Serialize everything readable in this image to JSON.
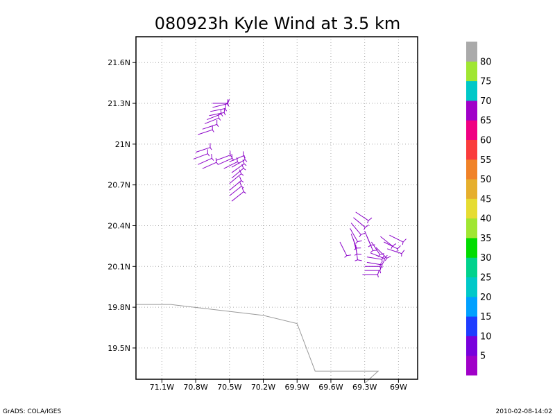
{
  "chart_data": {
    "type": "scatter",
    "title": "080923h Kyle Wind at 3.5 km",
    "x_ticks": [
      "71.1W",
      "70.8W",
      "70.5W",
      "70.2W",
      "69.9W",
      "69.6W",
      "69.3W",
      "69W"
    ],
    "y_ticks": [
      "21.6N",
      "21.3N",
      "21N",
      "20.7N",
      "20.4N",
      "20.1N",
      "19.8N",
      "19.5N"
    ],
    "x_tick_values": [
      -71.1,
      -70.8,
      -70.5,
      -70.2,
      -69.9,
      -69.6,
      -69.3,
      -69.0
    ],
    "y_tick_values": [
      21.6,
      21.3,
      21.0,
      20.7,
      20.4,
      20.1,
      19.8,
      19.5
    ],
    "xlim": [
      -71.33,
      -68.83
    ],
    "ylim": [
      19.27,
      21.79
    ],
    "grid": true,
    "colorbar": {
      "labels": [
        "5",
        "10",
        "15",
        "20",
        "25",
        "30",
        "35",
        "40",
        "45",
        "50",
        "55",
        "60",
        "65",
        "70",
        "75",
        "80"
      ],
      "colors": [
        "#a000c8",
        "#7800dc",
        "#1e3cff",
        "#00a0ff",
        "#00c8c8",
        "#00d28c",
        "#00dc00",
        "#a0e632",
        "#e6dc32",
        "#e6af2d",
        "#f08228",
        "#fa3c3c",
        "#f00082",
        "#a000c8",
        "#00c8c8",
        "#a0e632",
        "#aaaaaa"
      ]
    },
    "coastline": [
      [
        -71.33,
        19.82
      ],
      [
        -71.02,
        19.82
      ],
      [
        -70.2,
        19.74
      ],
      [
        -69.9,
        19.68
      ],
      [
        -69.74,
        19.33
      ],
      [
        -69.18,
        19.33
      ],
      [
        -69.3,
        19.24
      ]
    ],
    "barb_color": "#8a00c8",
    "coast_color": "#999999",
    "wind_barbs": [
      {
        "lon": -70.65,
        "lat": 21.3,
        "u": -4,
        "v": 0
      },
      {
        "lon": -70.65,
        "lat": 21.27,
        "u": -4,
        "v": -1
      },
      {
        "lon": -70.67,
        "lat": 21.24,
        "u": -5,
        "v": -1
      },
      {
        "lon": -70.68,
        "lat": 21.21,
        "u": -5,
        "v": -1
      },
      {
        "lon": -70.7,
        "lat": 21.18,
        "u": -5,
        "v": -2
      },
      {
        "lon": -70.72,
        "lat": 21.15,
        "u": -5,
        "v": -2
      },
      {
        "lon": -70.74,
        "lat": 21.11,
        "u": -6,
        "v": -2
      },
      {
        "lon": -70.78,
        "lat": 21.07,
        "u": -6,
        "v": -2
      },
      {
        "lon": -70.8,
        "lat": 20.94,
        "u": -6,
        "v": -2
      },
      {
        "lon": -70.82,
        "lat": 20.89,
        "u": -8,
        "v": -3
      },
      {
        "lon": -70.78,
        "lat": 20.85,
        "u": -9,
        "v": -4
      },
      {
        "lon": -70.74,
        "lat": 20.82,
        "u": -9,
        "v": -4
      },
      {
        "lon": -70.62,
        "lat": 20.88,
        "u": -8,
        "v": -3
      },
      {
        "lon": -70.6,
        "lat": 20.85,
        "u": -9,
        "v": -4
      },
      {
        "lon": -70.55,
        "lat": 20.82,
        "u": -8,
        "v": -4
      },
      {
        "lon": -70.5,
        "lat": 20.87,
        "u": -7,
        "v": -3
      },
      {
        "lon": -70.48,
        "lat": 20.83,
        "u": -7,
        "v": -4
      },
      {
        "lon": -70.48,
        "lat": 20.79,
        "u": -7,
        "v": -5
      },
      {
        "lon": -70.48,
        "lat": 20.75,
        "u": -6,
        "v": -5
      },
      {
        "lon": -70.5,
        "lat": 20.71,
        "u": -6,
        "v": -5
      },
      {
        "lon": -70.5,
        "lat": 20.66,
        "u": -6,
        "v": -5
      },
      {
        "lon": -70.5,
        "lat": 20.62,
        "u": -5,
        "v": -4
      },
      {
        "lon": -70.48,
        "lat": 20.58,
        "u": -5,
        "v": -4
      },
      {
        "lon": -69.38,
        "lat": 20.5,
        "u": -6,
        "v": 4
      },
      {
        "lon": -69.4,
        "lat": 20.46,
        "u": -6,
        "v": 5
      },
      {
        "lon": -69.42,
        "lat": 20.42,
        "u": -5,
        "v": 6
      },
      {
        "lon": -69.43,
        "lat": 20.38,
        "u": -4,
        "v": 7
      },
      {
        "lon": -69.42,
        "lat": 20.34,
        "u": -3,
        "v": 8
      },
      {
        "lon": -69.4,
        "lat": 20.3,
        "u": -2,
        "v": 8
      },
      {
        "lon": -69.38,
        "lat": 20.26,
        "u": -1,
        "v": 8
      },
      {
        "lon": -69.3,
        "lat": 20.36,
        "u": -3,
        "v": 7
      },
      {
        "lon": -69.28,
        "lat": 20.32,
        "u": -3,
        "v": 7
      },
      {
        "lon": -69.24,
        "lat": 20.28,
        "u": -4,
        "v": 6
      },
      {
        "lon": -69.2,
        "lat": 20.24,
        "u": -5,
        "v": 5
      },
      {
        "lon": -69.16,
        "lat": 20.32,
        "u": -5,
        "v": 4
      },
      {
        "lon": -69.13,
        "lat": 20.28,
        "u": -6,
        "v": 3
      },
      {
        "lon": -69.1,
        "lat": 20.23,
        "u": -6,
        "v": 2
      },
      {
        "lon": -69.08,
        "lat": 20.33,
        "u": -4,
        "v": 2
      },
      {
        "lon": -69.25,
        "lat": 20.2,
        "u": -5,
        "v": 2
      },
      {
        "lon": -69.28,
        "lat": 20.17,
        "u": -6,
        "v": 1
      },
      {
        "lon": -69.28,
        "lat": 20.13,
        "u": -6,
        "v": 1
      },
      {
        "lon": -69.3,
        "lat": 20.1,
        "u": -6,
        "v": 0
      },
      {
        "lon": -69.3,
        "lat": 20.07,
        "u": -5,
        "v": 0
      },
      {
        "lon": -69.32,
        "lat": 20.04,
        "u": -5,
        "v": 0
      },
      {
        "lon": -69.52,
        "lat": 20.28,
        "u": -1,
        "v": 2
      }
    ]
  },
  "footer": {
    "left": "GrADS: COLA/IGES",
    "right": "2010-02-08-14:02"
  }
}
